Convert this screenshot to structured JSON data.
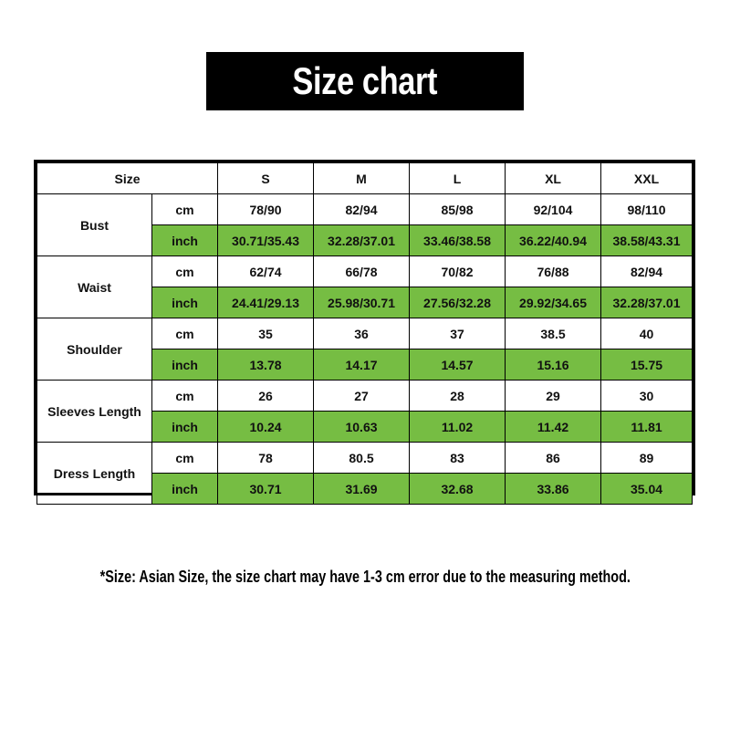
{
  "title": "Size chart",
  "colors": {
    "inch_row": "#76bd43",
    "title_bg": "#000000"
  },
  "table": {
    "header": {
      "label": "Size",
      "sizes": [
        "S",
        "M",
        "L",
        "XL",
        "XXL"
      ]
    },
    "rows": [
      {
        "label": "Bust",
        "cm": [
          "78/90",
          "82/94",
          "85/98",
          "92/104",
          "98/110"
        ],
        "inch": [
          "30.71/35.43",
          "32.28/37.01",
          "33.46/38.58",
          "36.22/40.94",
          "38.58/43.31"
        ]
      },
      {
        "label": "Waist",
        "cm": [
          "62/74",
          "66/78",
          "70/82",
          "76/88",
          "82/94"
        ],
        "inch": [
          "24.41/29.13",
          "25.98/30.71",
          "27.56/32.28",
          "29.92/34.65",
          "32.28/37.01"
        ]
      },
      {
        "label": "Shoulder",
        "cm": [
          "35",
          "36",
          "37",
          "38.5",
          "40"
        ],
        "inch": [
          "13.78",
          "14.17",
          "14.57",
          "15.16",
          "15.75"
        ]
      },
      {
        "label": "Sleeves Length",
        "cm": [
          "26",
          "27",
          "28",
          "29",
          "30"
        ],
        "inch": [
          "10.24",
          "10.63",
          "11.02",
          "11.42",
          "11.81"
        ]
      },
      {
        "label": "Dress Length",
        "cm": [
          "78",
          "80.5",
          "83",
          "86",
          "89"
        ],
        "inch": [
          "30.71",
          "31.69",
          "32.68",
          "33.86",
          "35.04"
        ]
      }
    ],
    "units": {
      "cm": "cm",
      "inch": "inch"
    }
  },
  "footnote": "*Size: Asian Size, the size chart may have 1-3 cm error due to the measuring method."
}
